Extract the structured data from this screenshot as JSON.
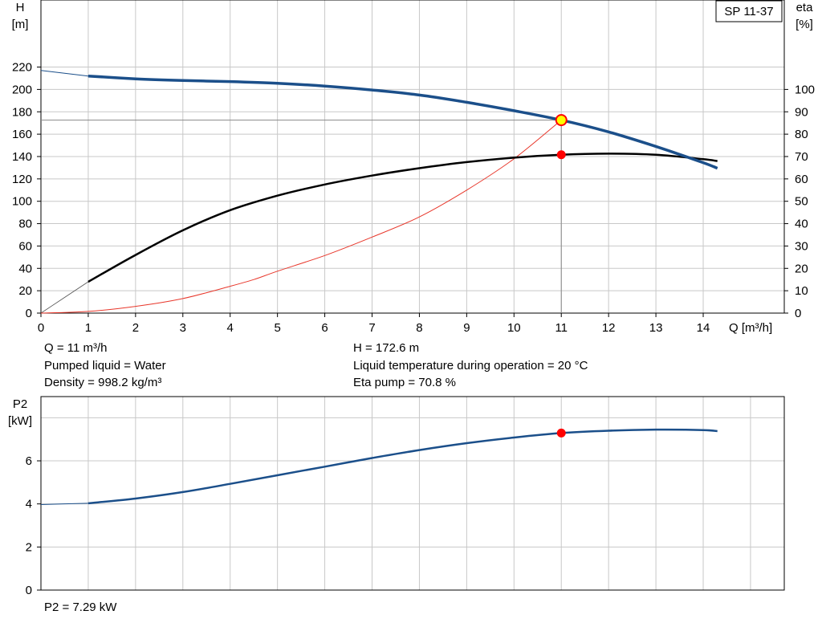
{
  "colors": {
    "head_curve": "#1b4f8a",
    "eta_curve": "#000000",
    "p2_curve": "#1b4f8a",
    "system_curve": "#e8372b",
    "duty_point": "#ff0000",
    "duty_point_head_fill": "#ffff00",
    "grid": "#c8c8c8"
  },
  "legend_box": {
    "text": "SP 11-37"
  },
  "operating_info": {
    "q": "Q = 11 m³/h",
    "liquid": "Pumped liquid = Water",
    "density": "Density = 998.2 kg/m³",
    "h": "H = 172.6 m",
    "temperature": "Liquid temperature during operation = 20 °C",
    "eta": "Eta pump = 70.8 %",
    "p2": "P2 = 7.29 kW"
  },
  "chart_data": [
    {
      "type": "line",
      "xlabel": "Q [m³/h]",
      "ylabel": "H\n[m]",
      "y2label": "eta\n[%]",
      "xlim": [
        0,
        15
      ],
      "ylim": [
        0,
        240
      ],
      "y2lim": [
        0,
        120
      ],
      "xticks": [
        0,
        1,
        2,
        3,
        4,
        5,
        6,
        7,
        8,
        9,
        10,
        11,
        12,
        13,
        14
      ],
      "yticks": [
        0,
        20,
        40,
        60,
        80,
        100,
        120,
        140,
        160,
        180,
        200,
        220
      ],
      "y2ticks": [
        0,
        10,
        20,
        30,
        40,
        50,
        60,
        70,
        80,
        90,
        100
      ],
      "grid": true,
      "series": [
        {
          "axis": "left",
          "x": [
            1,
            2,
            3,
            4,
            5,
            6,
            7,
            8,
            9,
            10,
            11,
            12,
            13,
            14,
            14.3
          ],
          "values": [
            212,
            209.5,
            208,
            207,
            205.5,
            203,
            199.5,
            195,
            188.5,
            181,
            172.6,
            162,
            149,
            134.5,
            129.5
          ]
        },
        {
          "axis": "left",
          "x": [
            0,
            1
          ],
          "values": [
            217,
            212
          ],
          "style": "thin-extrapolation"
        },
        {
          "axis": "right",
          "x": [
            1,
            2,
            3,
            4,
            5,
            6,
            7,
            8,
            9,
            10,
            11,
            12,
            13,
            14,
            14.3
          ],
          "values": [
            14,
            26,
            37,
            46,
            52.5,
            57.5,
            61.5,
            64.8,
            67.5,
            69.5,
            70.8,
            71.3,
            70.8,
            68.8,
            68
          ]
        },
        {
          "axis": "right",
          "x": [
            0,
            1
          ],
          "values": [
            0,
            14
          ],
          "style": "thin-extrapolation"
        },
        {
          "axis": "left",
          "x": [
            0,
            1,
            2,
            3,
            4,
            4.5,
            5,
            6,
            7,
            8,
            9,
            10,
            11
          ],
          "values": [
            0,
            1.5,
            6,
            13,
            24,
            30,
            37.5,
            51.5,
            68,
            86,
            110,
            138,
            172.6
          ],
          "style": "system-curve"
        }
      ],
      "duty_point": {
        "x": 11,
        "head": 172.6,
        "eta": 70.8
      }
    },
    {
      "type": "line",
      "ylabel": "P2\n[kW]",
      "xlim": [
        0,
        15
      ],
      "ylim": [
        0,
        8
      ],
      "xticks": [
        0,
        1,
        2,
        3,
        4,
        5,
        6,
        7,
        8,
        9,
        10,
        11,
        12,
        13,
        14
      ],
      "yticks": [
        0,
        2,
        4,
        6
      ],
      "grid": true,
      "series": [
        {
          "x": [
            1,
            2,
            3,
            4,
            5,
            6,
            7,
            8,
            9,
            10,
            11,
            12,
            13,
            14,
            14.3
          ],
          "values": [
            4.03,
            4.25,
            4.55,
            4.93,
            5.33,
            5.73,
            6.13,
            6.5,
            6.82,
            7.08,
            7.29,
            7.4,
            7.45,
            7.43,
            7.38
          ]
        },
        {
          "x": [
            0,
            1
          ],
          "values": [
            3.97,
            4.03
          ],
          "style": "thin-extrapolation"
        }
      ],
      "duty_point": {
        "x": 11,
        "value": 7.29
      }
    }
  ]
}
